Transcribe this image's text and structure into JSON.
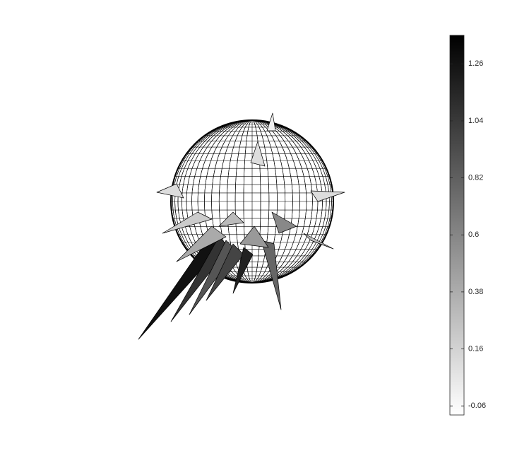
{
  "chart_data": {
    "type": "surface",
    "colormap": [
      "#ffffff",
      "#000000"
    ],
    "clim": [
      -0.095,
      1.37
    ],
    "colorbar_ticks": [
      -0.06,
      0.16,
      0.38,
      0.6,
      0.82,
      1.04,
      1.26
    ]
  }
}
